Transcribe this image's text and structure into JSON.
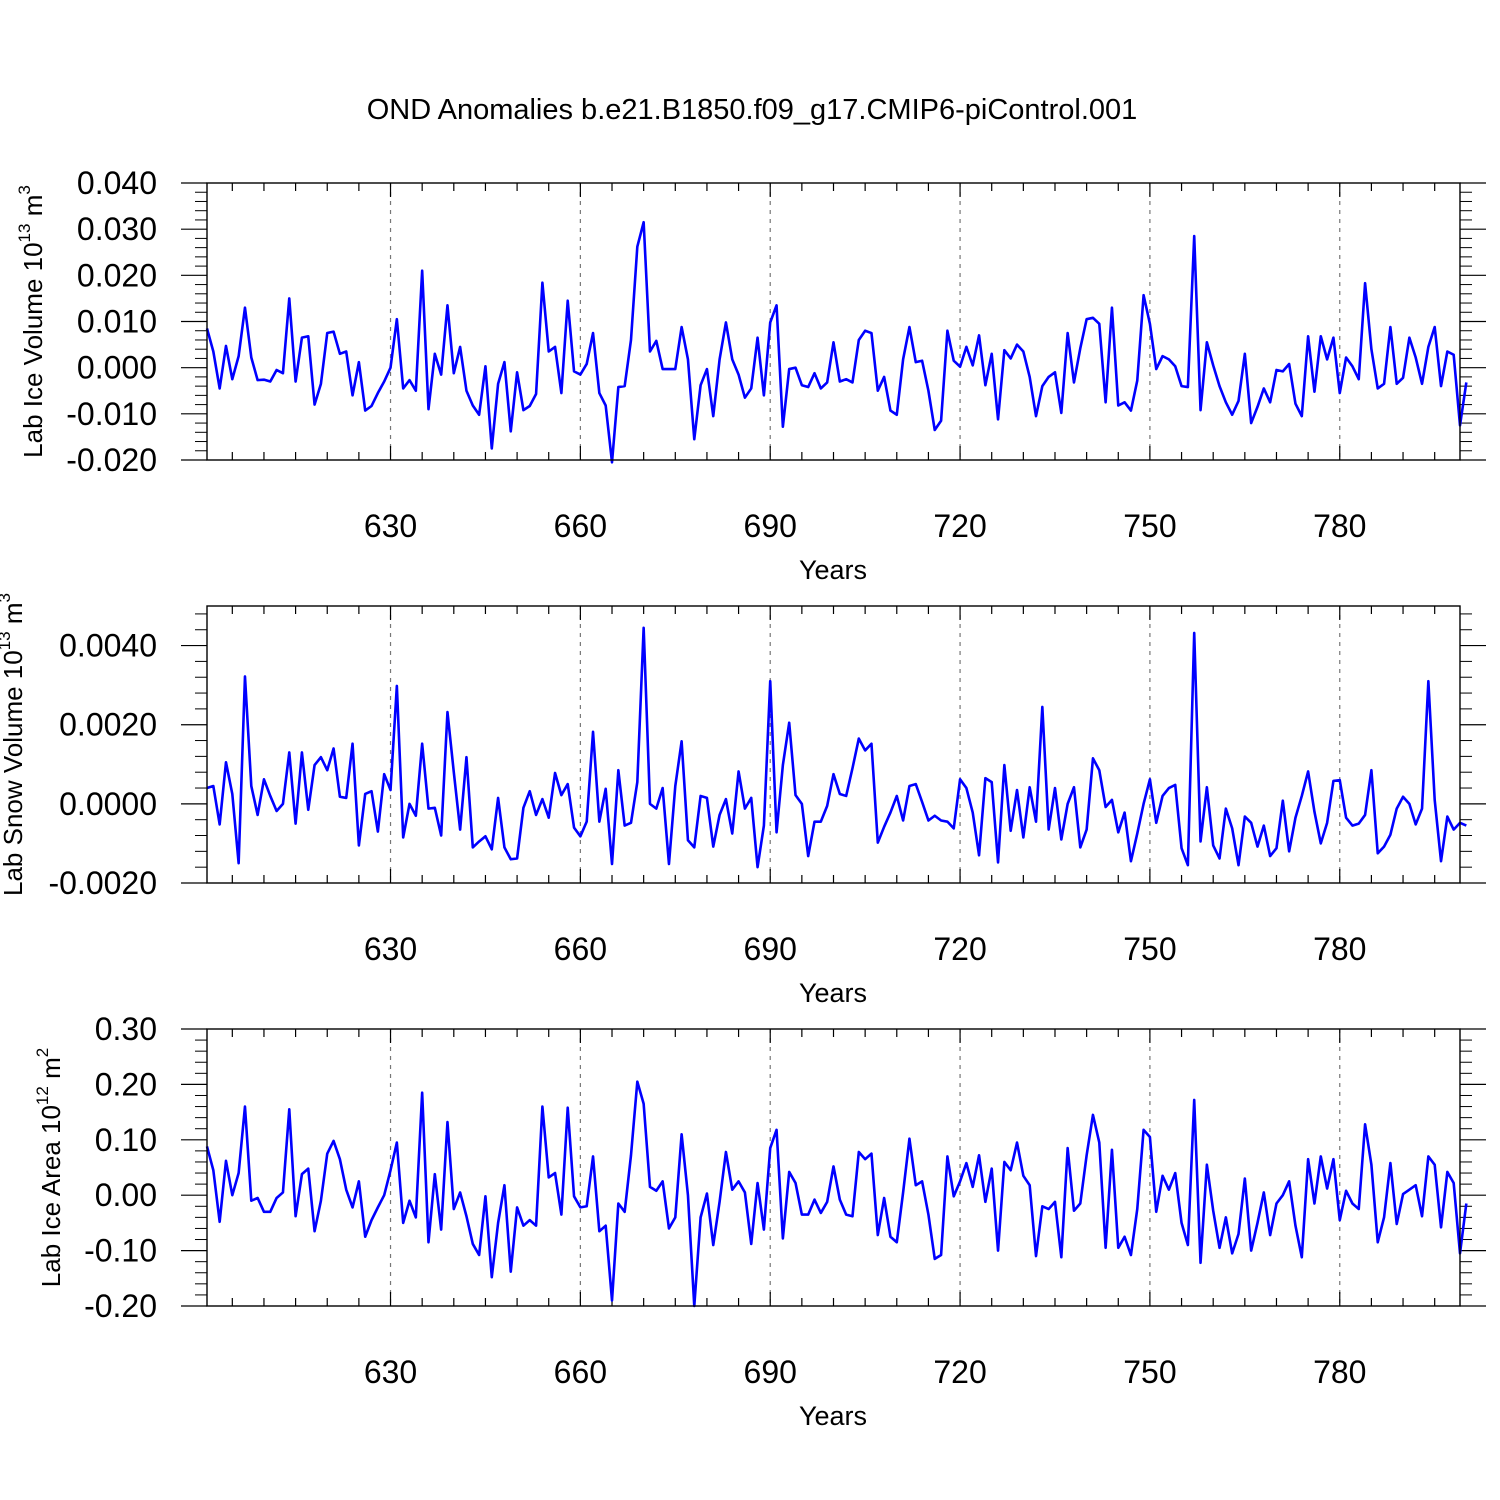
{
  "title": "OND Anomalies b.e21.B1850.f09_g17.CMIP6-piControl.001",
  "colors": {
    "line": "#0000ff",
    "axis": "#000000",
    "grid": "#777777"
  },
  "chart_data": [
    {
      "type": "line",
      "series_name": "Lab Ice Volume",
      "ylabel": "Lab Ice Volume",
      "ylabel_base": "10",
      "ylabel_exp": "13",
      "ylabel_unit": "m",
      "ylabel_unit_exp": "3",
      "xlabel": "Years",
      "xlim": [
        601,
        799
      ],
      "ylim": [
        -0.02,
        0.04
      ],
      "yticks": [
        -0.02,
        -0.01,
        0.0,
        0.01,
        0.02,
        0.03,
        0.04
      ],
      "ytick_labels": [
        "-0.020",
        "-0.010",
        "0.000",
        "0.010",
        "0.020",
        "0.030",
        "0.040"
      ],
      "xticks": [
        630,
        660,
        690,
        720,
        750,
        780
      ],
      "xtick_labels": [
        "630",
        "660",
        "690",
        "720",
        "750",
        "780"
      ],
      "x_start": 601,
      "values": [
        0.0085,
        0.0035,
        -0.0045,
        0.0047,
        -0.0025,
        0.0025,
        0.013,
        0.0022,
        -0.0027,
        -0.0026,
        -0.003,
        -0.0005,
        -0.0012,
        0.015,
        -0.003,
        0.0065,
        0.0068,
        -0.008,
        -0.0035,
        0.0075,
        0.0078,
        0.003,
        0.0035,
        -0.006,
        0.0012,
        -0.0093,
        -0.0083,
        -0.0055,
        -0.003,
        0.0,
        0.0105,
        -0.0045,
        -0.0027,
        -0.005,
        0.021,
        -0.009,
        0.003,
        -0.0015,
        0.0135,
        -0.0012,
        0.0045,
        -0.005,
        -0.0082,
        -0.0102,
        0.0003,
        -0.0175,
        -0.0035,
        0.0012,
        -0.0138,
        -0.001,
        -0.0092,
        -0.0083,
        -0.0057,
        0.0184,
        0.0035,
        0.0045,
        -0.0055,
        0.0145,
        -0.0008,
        -0.0015,
        0.0008,
        0.0075,
        -0.0055,
        -0.0082,
        -0.0205,
        -0.0042,
        -0.004,
        0.006,
        0.0262,
        0.0315,
        0.0035,
        0.0058,
        -0.0003,
        -0.0003,
        -0.0003,
        0.0088,
        0.0018,
        -0.0155,
        -0.0038,
        -0.0003,
        -0.0105,
        0.0018,
        0.0098,
        0.0018,
        -0.0015,
        -0.0065,
        -0.0045,
        0.0065,
        -0.006,
        0.0098,
        0.0135,
        -0.0128,
        -0.0003,
        0.0,
        -0.0038,
        -0.0042,
        -0.0012,
        -0.0045,
        -0.0032,
        0.0055,
        -0.003,
        -0.0025,
        -0.0032,
        0.006,
        0.008,
        0.0075,
        -0.005,
        -0.002,
        -0.0093,
        -0.0102,
        0.0018,
        0.0088,
        0.0012,
        0.0015,
        -0.005,
        -0.0135,
        -0.0115,
        0.008,
        0.0015,
        0.0002,
        0.0045,
        0.0005,
        0.007,
        -0.0038,
        0.003,
        -0.0112,
        0.0038,
        0.002,
        0.005,
        0.0035,
        -0.002,
        -0.0105,
        -0.004,
        -0.002,
        -0.001,
        -0.0098,
        0.0075,
        -0.0032,
        0.0042,
        0.0105,
        0.0108,
        0.0095,
        -0.0075,
        0.013,
        -0.0082,
        -0.0075,
        -0.0093,
        -0.0028,
        0.0157,
        0.0095,
        -0.0003,
        0.0025,
        0.0018,
        0.0003,
        -0.004,
        -0.0042,
        0.0285,
        -0.0092,
        0.0055,
        0.0005,
        -0.004,
        -0.0075,
        -0.0102,
        -0.0072,
        0.003,
        -0.012,
        -0.0085,
        -0.0045,
        -0.0075,
        -0.0005,
        -0.0008,
        0.0008,
        -0.0078,
        -0.0105,
        0.0068,
        -0.0052,
        0.0068,
        0.0018,
        0.0065,
        -0.0055,
        0.0022,
        0.0003,
        -0.0025,
        0.0183,
        0.004,
        -0.0045,
        -0.0035,
        0.0088,
        -0.0035,
        -0.0022,
        0.0065,
        0.0022,
        -0.0035,
        0.0045,
        0.0088,
        -0.004,
        0.0035,
        0.0028,
        -0.0125,
        -0.0032
      ]
    },
    {
      "type": "line",
      "series_name": "Lab Snow Volume",
      "ylabel": "Lab Snow Volume",
      "ylabel_base": "10",
      "ylabel_exp": "13",
      "ylabel_unit": "m",
      "ylabel_unit_exp": "3",
      "xlabel": "Years",
      "xlim": [
        601,
        799
      ],
      "ylim": [
        -0.002,
        0.005
      ],
      "yticks": [
        -0.002,
        0.0,
        0.002,
        0.004
      ],
      "ytick_labels": [
        "-0.0020",
        "0.0000",
        "0.0020",
        "0.0040"
      ],
      "xticks": [
        630,
        660,
        690,
        720,
        750,
        780
      ],
      "xtick_labels": [
        "630",
        "660",
        "690",
        "720",
        "750",
        "780"
      ],
      "x_start": 601,
      "values": [
        0.0004,
        0.00045,
        -0.00052,
        0.00105,
        0.00025,
        -0.0015,
        0.00322,
        0.00045,
        -0.00028,
        0.00062,
        0.0002,
        -0.00018,
        0.0,
        0.0013,
        -0.0005,
        0.0013,
        -0.00015,
        0.00098,
        0.00118,
        0.00085,
        0.0014,
        0.00018,
        0.00015,
        0.00152,
        -0.00105,
        0.00025,
        0.00032,
        -0.0007,
        0.00075,
        0.00035,
        0.00298,
        -0.00085,
        -0.0,
        -0.0003,
        0.00152,
        -0.00012,
        -0.0001,
        -0.0008,
        0.00232,
        0.0008,
        -0.00065,
        0.00118,
        -0.0011,
        -0.00095,
        -0.00082,
        -0.00115,
        0.00015,
        -0.0011,
        -0.0014,
        -0.00138,
        -0.0001,
        0.00032,
        -0.00028,
        0.00012,
        -0.00035,
        0.00078,
        0.00022,
        0.0005,
        -0.0006,
        -0.00082,
        -0.00045,
        0.00182,
        -0.00045,
        0.00038,
        -0.00152,
        0.00085,
        -0.00055,
        -0.00048,
        0.00055,
        0.00445,
        -0.0,
        -0.00012,
        0.0004,
        -0.00152,
        0.00045,
        0.00158,
        -0.00092,
        -0.0011,
        0.0002,
        0.00015,
        -0.00108,
        -0.00028,
        0.00012,
        -0.00075,
        0.00082,
        -0.00012,
        0.00015,
        -0.0016,
        -0.00055,
        0.0031,
        -0.00072,
        0.00098,
        0.00205,
        0.00022,
        0.0,
        -0.00132,
        -0.00045,
        -0.00045,
        -5e-05,
        0.00075,
        0.00025,
        0.0002,
        0.0009,
        0.00165,
        0.00135,
        0.00152,
        -0.00098,
        -0.00058,
        -0.00022,
        0.0002,
        -0.00042,
        0.00045,
        0.0005,
        5e-05,
        -0.00042,
        -0.0003,
        -0.00042,
        -0.00045,
        -0.00062,
        0.00062,
        0.0004,
        -0.00022,
        -0.0013,
        0.00065,
        0.00055,
        -0.00148,
        0.00098,
        -0.00068,
        0.00035,
        -0.00085,
        0.00042,
        -0.00045,
        0.00245,
        -0.00065,
        0.0004,
        -0.0009,
        0.0,
        0.00042,
        -0.0011,
        -0.00065,
        0.00115,
        0.00085,
        -8e-05,
        0.0001,
        -0.00072,
        -0.00022,
        -0.00145,
        -0.00075,
        -0.0,
        0.00062,
        -0.00048,
        0.0002,
        0.0004,
        0.00048,
        -0.00112,
        -0.00155,
        0.00432,
        -0.00095,
        0.00042,
        -0.00105,
        -0.00138,
        -0.00012,
        -0.00062,
        -0.00155,
        -0.00032,
        -0.00048,
        -0.00108,
        -0.00055,
        -0.00132,
        -0.00112,
        8e-05,
        -0.0012,
        -0.00035,
        0.0002,
        0.00082,
        -0.0002,
        -0.001,
        -0.00048,
        0.00058,
        0.0006,
        -0.00035,
        -0.00055,
        -0.0005,
        -0.00028,
        0.00085,
        -0.00125,
        -0.00108,
        -0.00078,
        -0.00012,
        0.00018,
        0.0,
        -0.00052,
        -0.00012,
        0.0031,
        0.0001,
        -0.00145,
        -0.00032,
        -0.00065,
        -0.00048,
        -0.00055
      ]
    },
    {
      "type": "line",
      "series_name": "Lab Ice Area",
      "ylabel": "Lab Ice Area",
      "ylabel_base": "10",
      "ylabel_exp": "12",
      "ylabel_unit": "m",
      "ylabel_unit_exp": "2",
      "xlabel": "Years",
      "xlim": [
        601,
        799
      ],
      "ylim": [
        -0.2,
        0.3
      ],
      "yticks": [
        -0.2,
        -0.1,
        0.0,
        0.1,
        0.2,
        0.3
      ],
      "ytick_labels": [
        "-0.20",
        "-0.10",
        "0.00",
        "0.10",
        "0.20",
        "0.30"
      ],
      "xticks": [
        630,
        660,
        690,
        720,
        750,
        780
      ],
      "xtick_labels": [
        "630",
        "660",
        "690",
        "720",
        "750",
        "780"
      ],
      "x_start": 601,
      "values": [
        0.088,
        0.045,
        -0.048,
        0.062,
        0.0,
        0.04,
        0.16,
        -0.01,
        -0.005,
        -0.03,
        -0.03,
        -0.005,
        0.005,
        0.155,
        -0.038,
        0.038,
        0.048,
        -0.065,
        -0.01,
        0.075,
        0.098,
        0.065,
        0.01,
        -0.022,
        0.025,
        -0.075,
        -0.045,
        -0.022,
        0.0,
        0.045,
        0.095,
        -0.05,
        -0.01,
        -0.04,
        0.185,
        -0.085,
        0.038,
        -0.062,
        0.132,
        -0.025,
        0.005,
        -0.038,
        -0.088,
        -0.108,
        -0.002,
        -0.148,
        -0.05,
        0.018,
        -0.138,
        -0.022,
        -0.055,
        -0.045,
        -0.055,
        0.16,
        0.032,
        0.04,
        -0.035,
        0.158,
        -0.002,
        -0.022,
        -0.02,
        0.07,
        -0.065,
        -0.055,
        -0.19,
        -0.015,
        -0.03,
        0.072,
        0.205,
        0.165,
        0.015,
        0.008,
        0.025,
        -0.06,
        -0.04,
        0.11,
        -0.0,
        -0.2,
        -0.04,
        0.003,
        -0.09,
        -0.012,
        0.078,
        0.01,
        0.025,
        0.005,
        -0.088,
        0.022,
        -0.062,
        0.085,
        0.118,
        -0.078,
        0.042,
        0.022,
        -0.035,
        -0.035,
        -0.008,
        -0.032,
        -0.012,
        0.052,
        -0.008,
        -0.035,
        -0.038,
        0.078,
        0.065,
        0.075,
        -0.072,
        -0.005,
        -0.075,
        -0.085,
        0.005,
        0.102,
        0.018,
        0.025,
        -0.035,
        -0.115,
        -0.108,
        0.07,
        -0.002,
        0.025,
        0.058,
        0.015,
        0.072,
        -0.012,
        0.048,
        -0.1,
        0.06,
        0.045,
        0.095,
        0.035,
        0.018,
        -0.11,
        -0.02,
        -0.025,
        -0.012,
        -0.112,
        0.085,
        -0.028,
        -0.015,
        0.072,
        0.145,
        0.095,
        -0.095,
        0.082,
        -0.095,
        -0.075,
        -0.108,
        -0.025,
        0.118,
        0.105,
        -0.03,
        0.035,
        0.01,
        0.04,
        -0.05,
        -0.09,
        0.172,
        -0.122,
        0.055,
        -0.028,
        -0.095,
        -0.04,
        -0.105,
        -0.07,
        0.03,
        -0.1,
        -0.05,
        0.005,
        -0.072,
        -0.015,
        0.0,
        0.025,
        -0.055,
        -0.112,
        0.065,
        -0.015,
        0.07,
        0.012,
        0.065,
        -0.045,
        0.008,
        -0.015,
        -0.025,
        0.128,
        0.055,
        -0.085,
        -0.04,
        0.058,
        -0.052,
        0.002,
        0.01,
        0.018,
        -0.038,
        0.07,
        0.055,
        -0.058,
        0.042,
        0.022,
        -0.105,
        -0.015
      ]
    }
  ]
}
